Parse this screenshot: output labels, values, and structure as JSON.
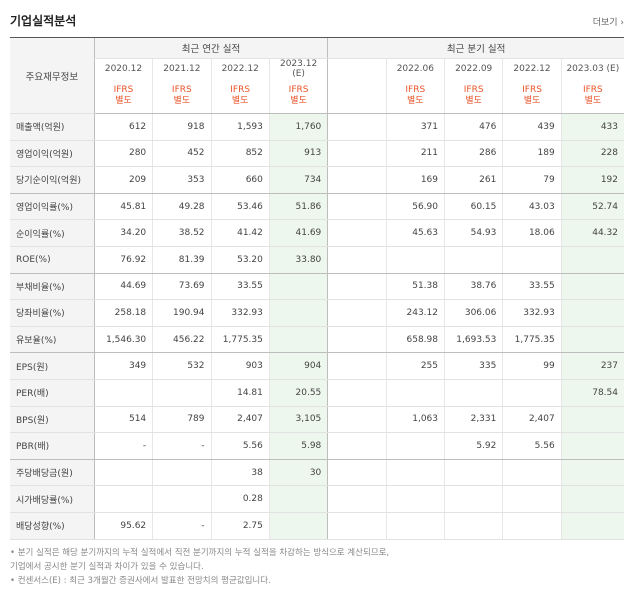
{
  "section": {
    "title": "기업실적분석",
    "more": "더보기 ›"
  },
  "table": {
    "rowhead": "주요재무정보",
    "annual_title": "최근 연간 실적",
    "quarter_title": "최근 분기 실적",
    "annual_periods": [
      "2020.12",
      "2021.12",
      "2022.12",
      "2023.12\n(E)"
    ],
    "quarter_periods": [
      "",
      "2022.06",
      "2022.09",
      "2022.12",
      "2023.03 (E)"
    ],
    "ifrs_line1": "IFRS",
    "ifrs_line2": "별도",
    "rows": [
      {
        "label": "매출액(억원)",
        "annual": [
          "612",
          "918",
          "1,593",
          "1,760"
        ],
        "quarter": [
          "",
          "371",
          "476",
          "439",
          "433"
        ]
      },
      {
        "label": "영업이익(억원)",
        "annual": [
          "280",
          "452",
          "852",
          "913"
        ],
        "quarter": [
          "",
          "211",
          "286",
          "189",
          "228"
        ]
      },
      {
        "label": "당기순이익(억원)",
        "annual": [
          "209",
          "353",
          "660",
          "734"
        ],
        "quarter": [
          "",
          "169",
          "261",
          "79",
          "192"
        ]
      },
      {
        "label": "영업이익률(%)",
        "annual": [
          "45.81",
          "49.28",
          "53.46",
          "51.86"
        ],
        "quarter": [
          "",
          "56.90",
          "60.15",
          "43.03",
          "52.74"
        ]
      },
      {
        "label": "순이익률(%)",
        "annual": [
          "34.20",
          "38.52",
          "41.42",
          "41.69"
        ],
        "quarter": [
          "",
          "45.63",
          "54.93",
          "18.06",
          "44.32"
        ]
      },
      {
        "label": "ROE(%)",
        "annual": [
          "76.92",
          "81.39",
          "53.20",
          "33.80"
        ],
        "quarter": [
          "",
          "",
          "",
          "",
          ""
        ]
      },
      {
        "label": "부채비율(%)",
        "annual": [
          "44.69",
          "73.69",
          "33.55",
          ""
        ],
        "quarter": [
          "",
          "51.38",
          "38.76",
          "33.55",
          ""
        ]
      },
      {
        "label": "당좌비율(%)",
        "annual": [
          "258.18",
          "190.94",
          "332.93",
          ""
        ],
        "quarter": [
          "",
          "243.12",
          "306.06",
          "332.93",
          ""
        ]
      },
      {
        "label": "유보율(%)",
        "annual": [
          "1,546.30",
          "456.22",
          "1,775.35",
          ""
        ],
        "quarter": [
          "",
          "658.98",
          "1,693.53",
          "1,775.35",
          ""
        ]
      },
      {
        "label": "EPS(원)",
        "annual": [
          "349",
          "532",
          "903",
          "904"
        ],
        "quarter": [
          "",
          "255",
          "335",
          "99",
          "237"
        ]
      },
      {
        "label": "PER(배)",
        "annual": [
          "",
          "",
          "14.81",
          "20.55"
        ],
        "quarter": [
          "",
          "",
          "",
          "",
          "78.54"
        ]
      },
      {
        "label": "BPS(원)",
        "annual": [
          "514",
          "789",
          "2,407",
          "3,105"
        ],
        "quarter": [
          "",
          "1,063",
          "2,331",
          "2,407",
          ""
        ]
      },
      {
        "label": "PBR(배)",
        "annual": [
          "-",
          "-",
          "5.56",
          "5.98"
        ],
        "quarter": [
          "",
          "",
          "5.92",
          "5.56",
          ""
        ]
      },
      {
        "label": "주당배당금(원)",
        "annual": [
          "",
          "",
          "38",
          "30"
        ],
        "quarter": [
          "",
          "",
          "",
          "",
          ""
        ]
      },
      {
        "label": "시가배당률(%)",
        "annual": [
          "",
          "",
          "0.28",
          ""
        ],
        "quarter": [
          "",
          "",
          "",
          "",
          ""
        ]
      },
      {
        "label": "배당성향(%)",
        "annual": [
          "95.62",
          "-",
          "2.75",
          ""
        ],
        "quarter": [
          "",
          "",
          "",
          "",
          ""
        ]
      }
    ]
  },
  "notes": [
    "• 분기 실적은 해당 분기까지의 누적 실적에서 직전 분기까지의 누적 실적을 차감하는 방식으로 계산되므로,",
    "  기업에서 공시한 분기 실적과 차이가 있을 수 있습니다.",
    "• 컨센서스(E) : 최근 3개월간 증권사에서 발표한 전망치의 평균값입니다."
  ],
  "colors": {
    "ifrs": "#e8552a",
    "estimate_bg": "#eef7ee",
    "header_bg": "#f4f4f4"
  }
}
